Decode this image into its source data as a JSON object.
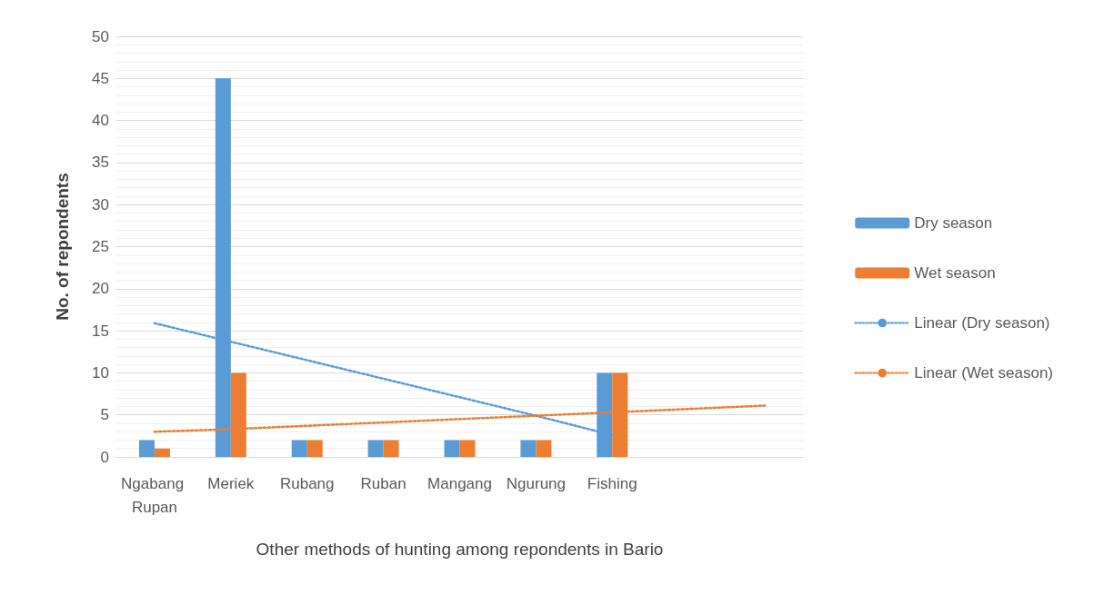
{
  "chart_data": {
    "type": "bar",
    "xlabel": "Other methods of hunting among repondents in Bario",
    "ylabel": "No. of repondents",
    "categories": [
      "Ngabang Rupan",
      "Meriek",
      "Rubang",
      "Ruban",
      "Mangang",
      "Ngurung",
      "Fishing",
      null,
      null
    ],
    "series": [
      {
        "name": "Dry season",
        "color": "#5b9bd5",
        "values": [
          2,
          45,
          2,
          2,
          2,
          2,
          10,
          null,
          null
        ]
      },
      {
        "name": "Wet season",
        "color": "#ed7d31",
        "values": [
          1,
          10,
          2,
          2,
          2,
          2,
          10,
          null,
          null
        ]
      },
      {
        "name": "Linear (Dry season)",
        "type": "line",
        "line_style": "dotted",
        "marker": "none",
        "color": "#5b9bd5",
        "values": [
          15.9,
          13.7,
          11.5,
          9.3,
          7.1,
          4.9,
          2.6,
          null,
          null
        ]
      },
      {
        "name": "Linear (Wet season)",
        "type": "line",
        "line_style": "dotted",
        "marker": "none",
        "color": "#ed7d31",
        "values": [
          3.0,
          3.3,
          3.7,
          4.1,
          4.5,
          4.9,
          5.3,
          5.7,
          6.1
        ]
      }
    ],
    "ylim": [
      0,
      50
    ],
    "yticks": [
      0,
      5,
      10,
      15,
      20,
      25,
      30,
      35,
      40,
      45,
      50
    ],
    "grid": true,
    "legend": "right"
  }
}
